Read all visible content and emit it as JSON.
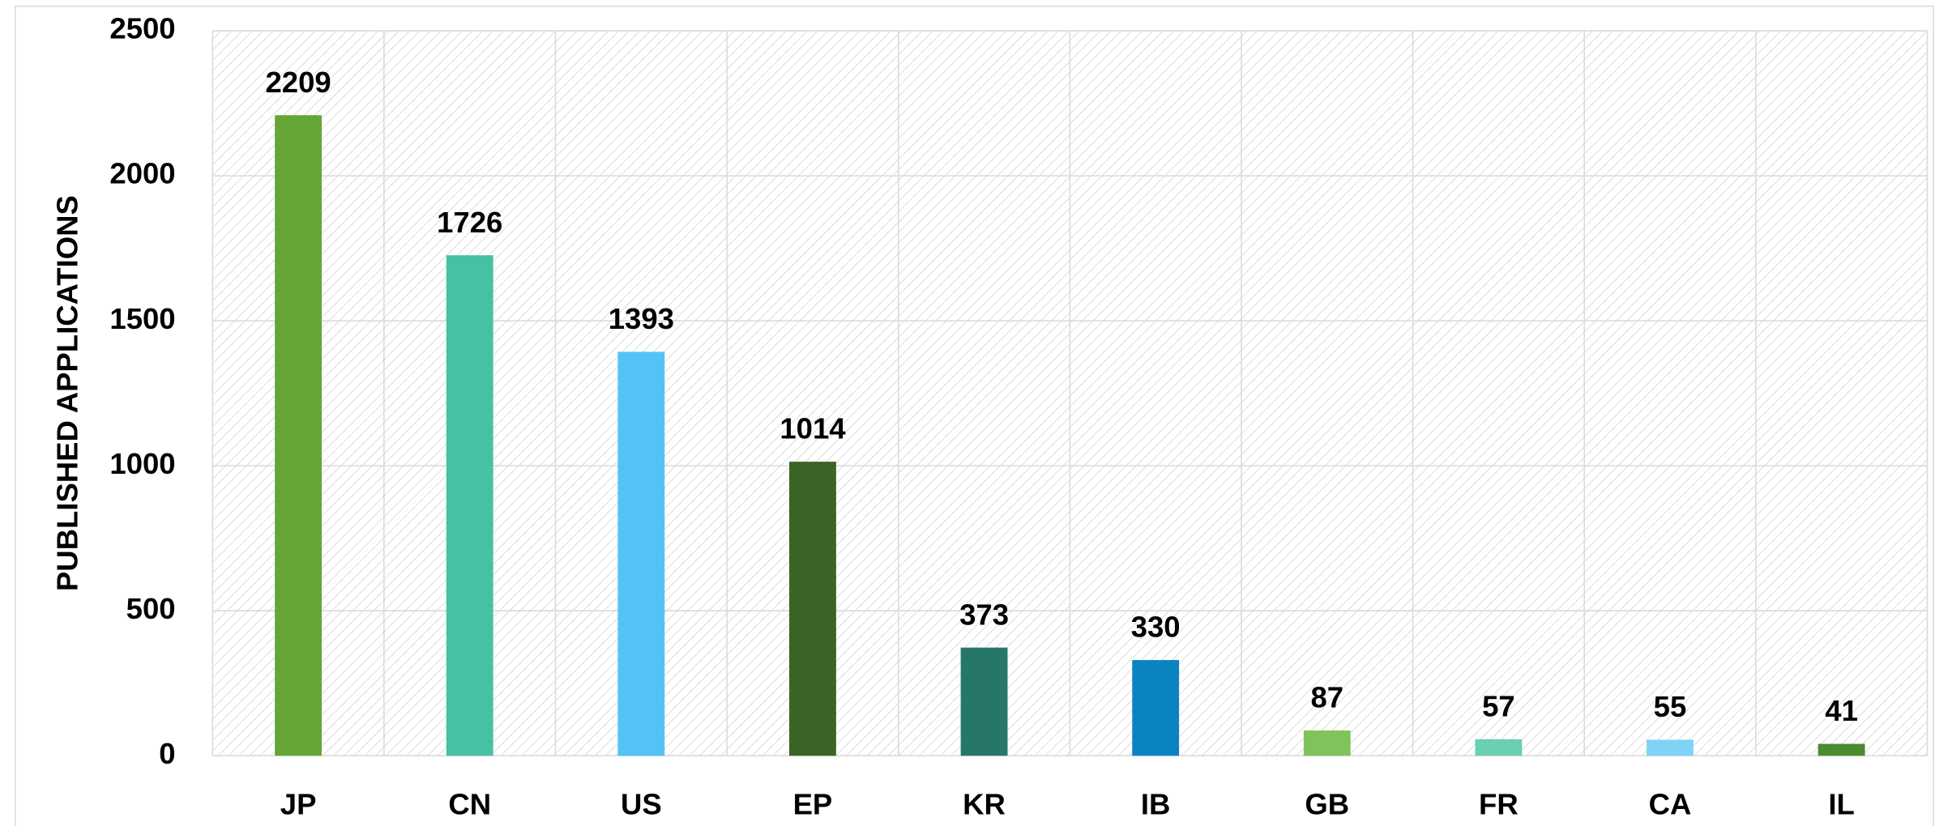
{
  "chart_data": {
    "type": "bar",
    "ylabel": "PUBLISHED APPLICATIONS",
    "categories": [
      "JP",
      "CN",
      "US",
      "EP",
      "KR",
      "IB",
      "GB",
      "FR",
      "CA",
      "IL"
    ],
    "values": [
      2209,
      1726,
      1393,
      1014,
      373,
      330,
      87,
      57,
      55,
      41
    ],
    "colors": [
      "#65a637",
      "#47c1a3",
      "#53c3f5",
      "#3b6325",
      "#26776a",
      "#0a84c1",
      "#80c35a",
      "#6bcfb4",
      "#7fd3f7",
      "#4d8a32"
    ],
    "ylim": [
      0,
      2500
    ],
    "yticks": [
      0,
      500,
      1000,
      1500,
      2000,
      2500
    ],
    "grid": true
  }
}
